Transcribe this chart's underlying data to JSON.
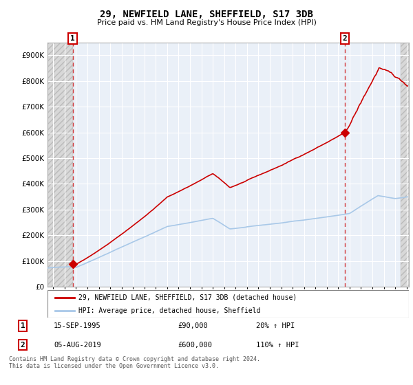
{
  "title": "29, NEWFIELD LANE, SHEFFIELD, S17 3DB",
  "subtitle": "Price paid vs. HM Land Registry's House Price Index (HPI)",
  "ylim": [
    0,
    950000
  ],
  "yticks": [
    0,
    100000,
    200000,
    300000,
    400000,
    500000,
    600000,
    700000,
    800000,
    900000
  ],
  "hpi_color": "#A8C8E8",
  "price_color": "#CC0000",
  "marker1_x": 1995.71,
  "marker1_y": 90000,
  "marker2_x": 2019.58,
  "marker2_y": 600000,
  "transaction1_date": "15-SEP-1995",
  "transaction1_price": "£90,000",
  "transaction1_hpi": "20% ↑ HPI",
  "transaction2_date": "05-AUG-2019",
  "transaction2_price": "£600,000",
  "transaction2_hpi": "110% ↑ HPI",
  "legend_label1": "29, NEWFIELD LANE, SHEFFIELD, S17 3DB (detached house)",
  "legend_label2": "HPI: Average price, detached house, Sheffield",
  "footer": "Contains HM Land Registry data © Crown copyright and database right 2024.\nThis data is licensed under the Open Government Licence v3.0.",
  "xmin": 1993.5,
  "xmax": 2025.2
}
